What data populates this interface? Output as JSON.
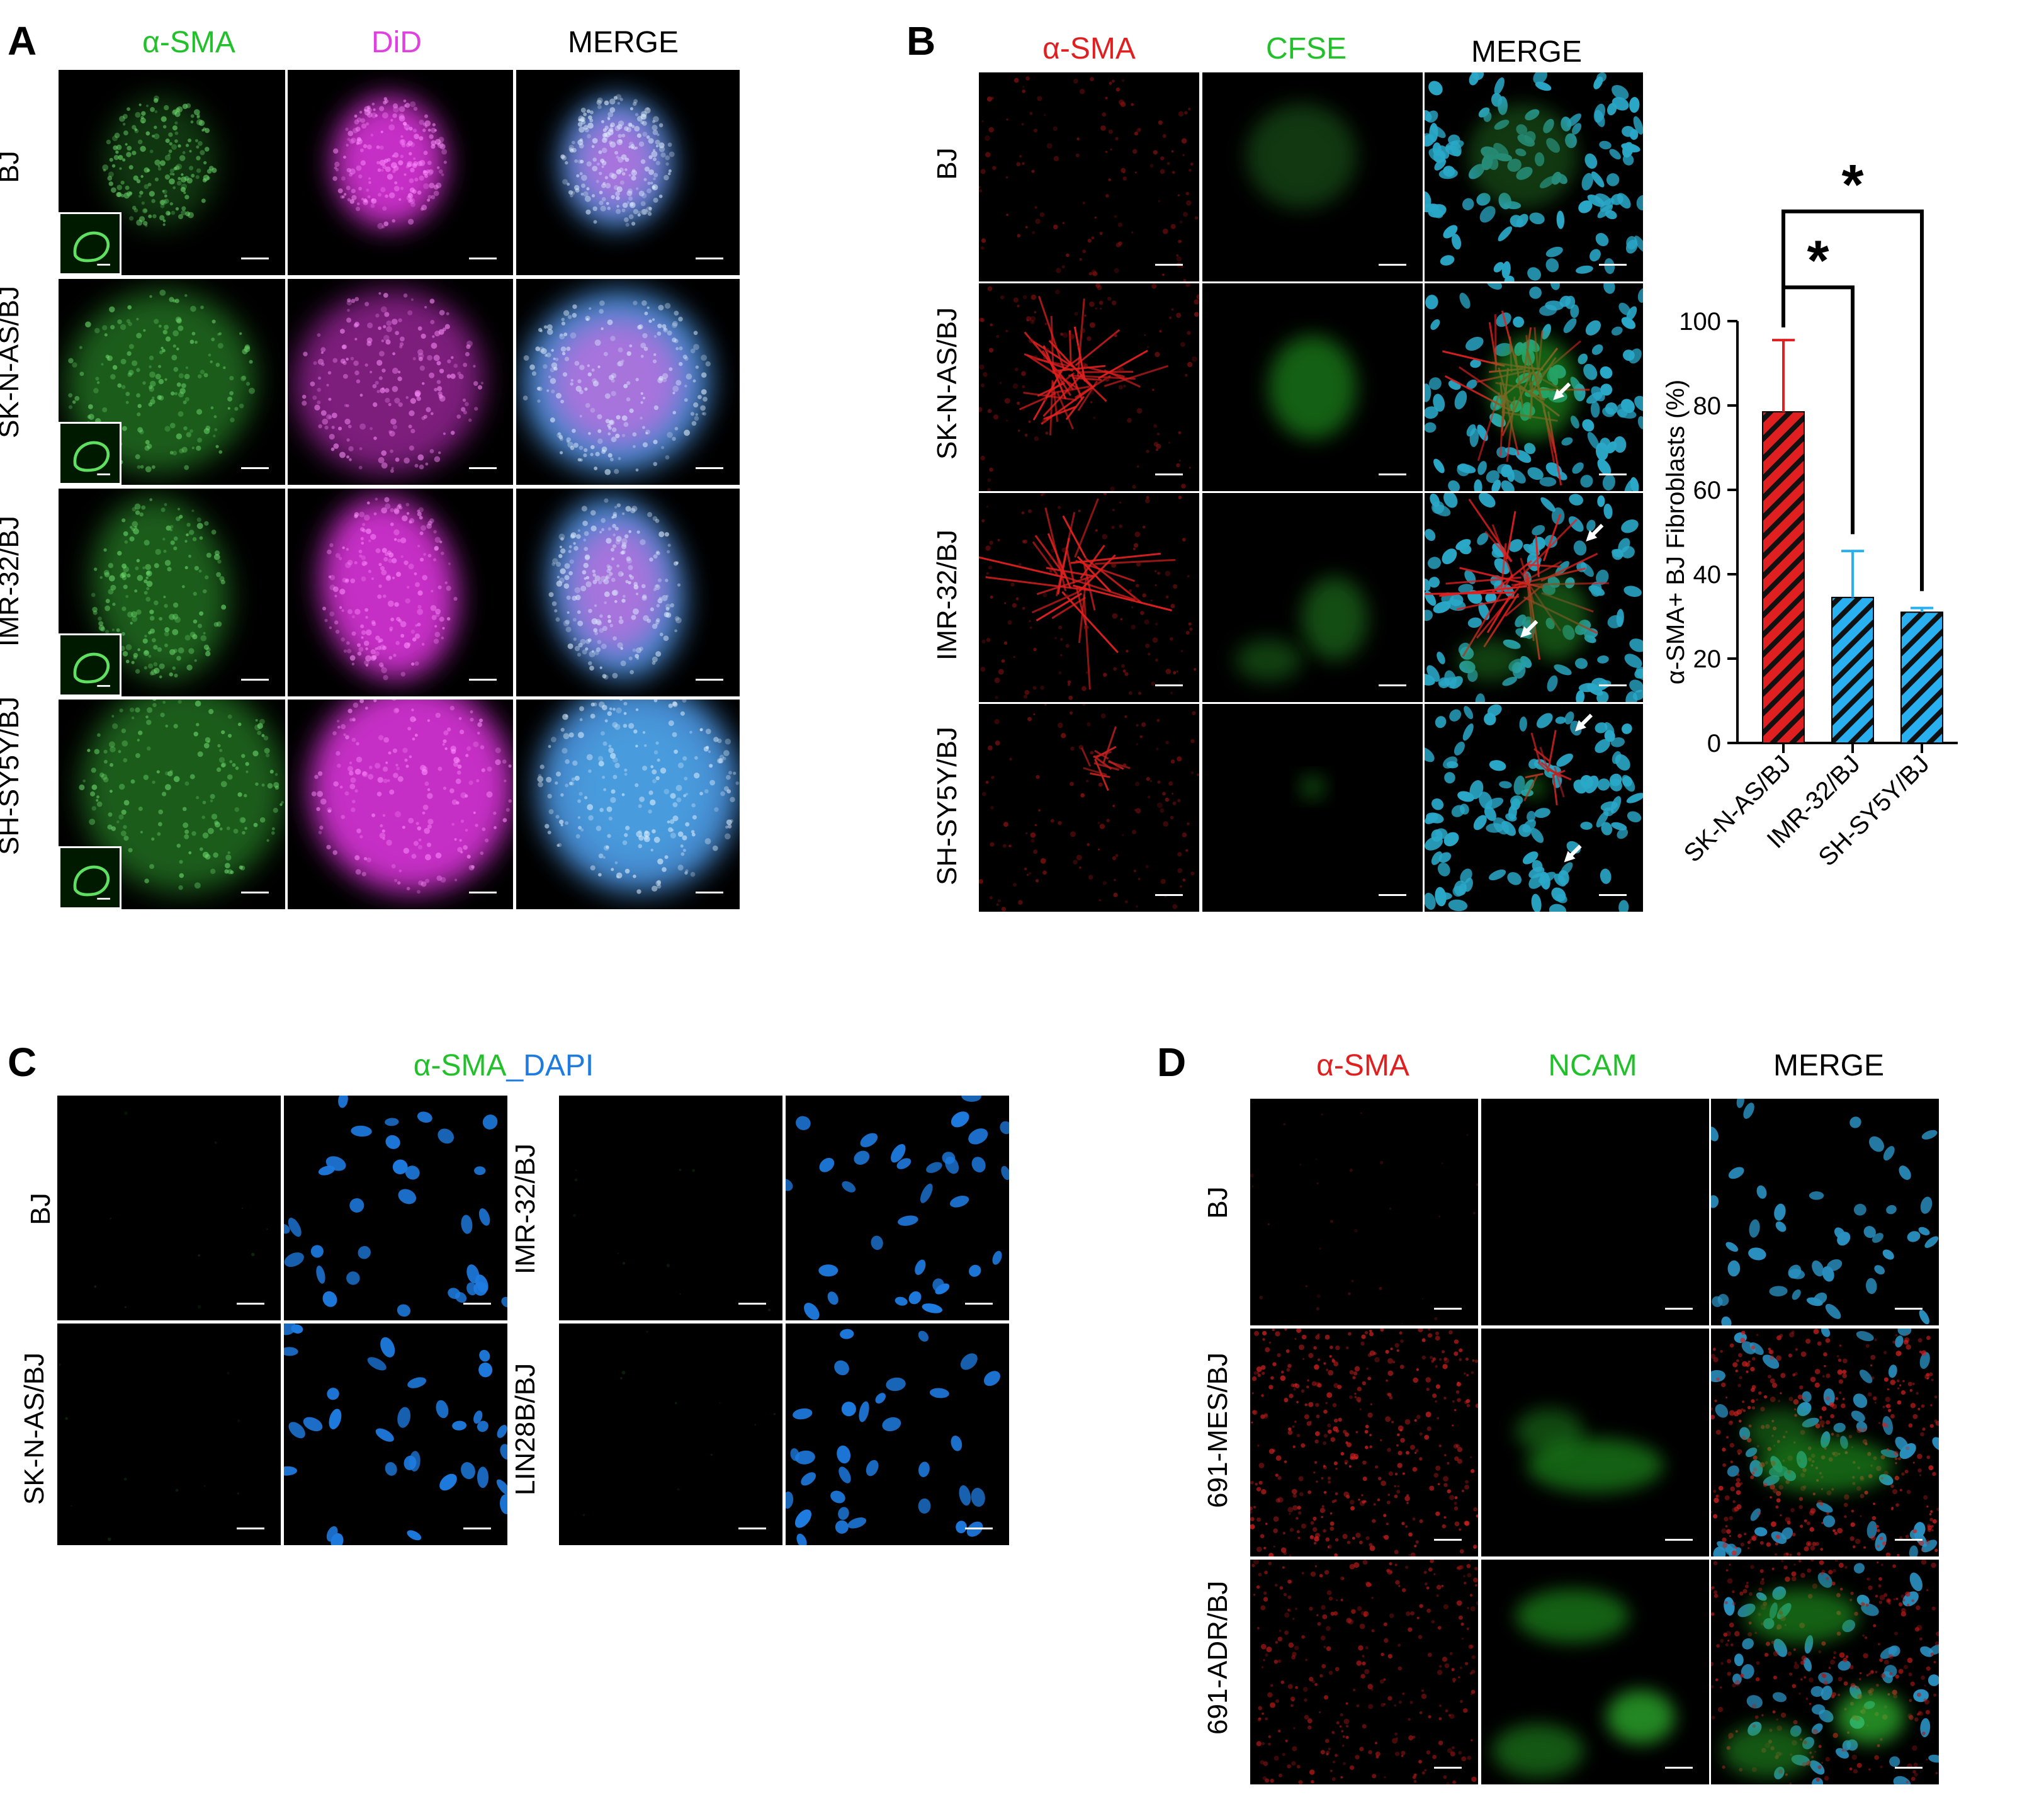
{
  "panels": {
    "A": {
      "label": "A",
      "headers": [
        {
          "text": "α-SMA",
          "color": "#22c02a"
        },
        {
          "text": "DiD",
          "color": "#e040e0"
        },
        {
          "text": "MERGE",
          "color": "#000000"
        }
      ],
      "rows": [
        "BJ",
        "SK-N-AS/BJ",
        "IMR-32/BJ",
        "SH-SY5Y/BJ"
      ]
    },
    "B": {
      "label": "B",
      "headers": [
        {
          "text": "α-SMA",
          "color": "#e02020"
        },
        {
          "text": "CFSE",
          "color": "#22c02a"
        },
        {
          "text": "MERGE",
          "color": "#000000"
        }
      ],
      "rows": [
        "BJ",
        "SK-N-AS/BJ",
        "IMR-32/BJ",
        "SH-SY5Y/BJ"
      ]
    },
    "C": {
      "label": "C",
      "header_part1": {
        "text": "α-SMA",
        "color": "#22c02a"
      },
      "header_part2": {
        "text": "_DAPI",
        "color": "#1e7be0"
      },
      "rows_left": [
        "BJ",
        "SK-N-AS/BJ"
      ],
      "rows_right": [
        "IMR-32/BJ",
        "LIN28B/BJ"
      ]
    },
    "D": {
      "label": "D",
      "headers": [
        {
          "text": "α-SMA",
          "color": "#e02020"
        },
        {
          "text": "NCAM",
          "color": "#22c02a"
        },
        {
          "text": "MERGE",
          "color": "#000000"
        }
      ],
      "rows": [
        "BJ",
        "691-MES/BJ",
        "691-ADR/BJ"
      ]
    }
  },
  "chart_data": {
    "type": "bar",
    "categories": [
      "SK-N-AS/BJ",
      "IMR-32/BJ",
      "SH-SY5Y/BJ"
    ],
    "values": [
      78.5,
      34.5,
      31
    ],
    "errors": [
      17,
      11,
      1
    ],
    "ylabel": "α-SMA+ BJ Fibroblasts  (%)",
    "ylim": [
      0,
      100
    ],
    "yticks": [
      0,
      20,
      40,
      60,
      80,
      100
    ],
    "colors": [
      "#e02020",
      "#28b0f0",
      "#28b0f0"
    ],
    "significance": [
      {
        "from": "SK-N-AS/BJ",
        "to": "IMR-32/BJ",
        "label": "*"
      },
      {
        "from": "SK-N-AS/BJ",
        "to": "SH-SY5Y/BJ",
        "label": "*"
      }
    ]
  }
}
